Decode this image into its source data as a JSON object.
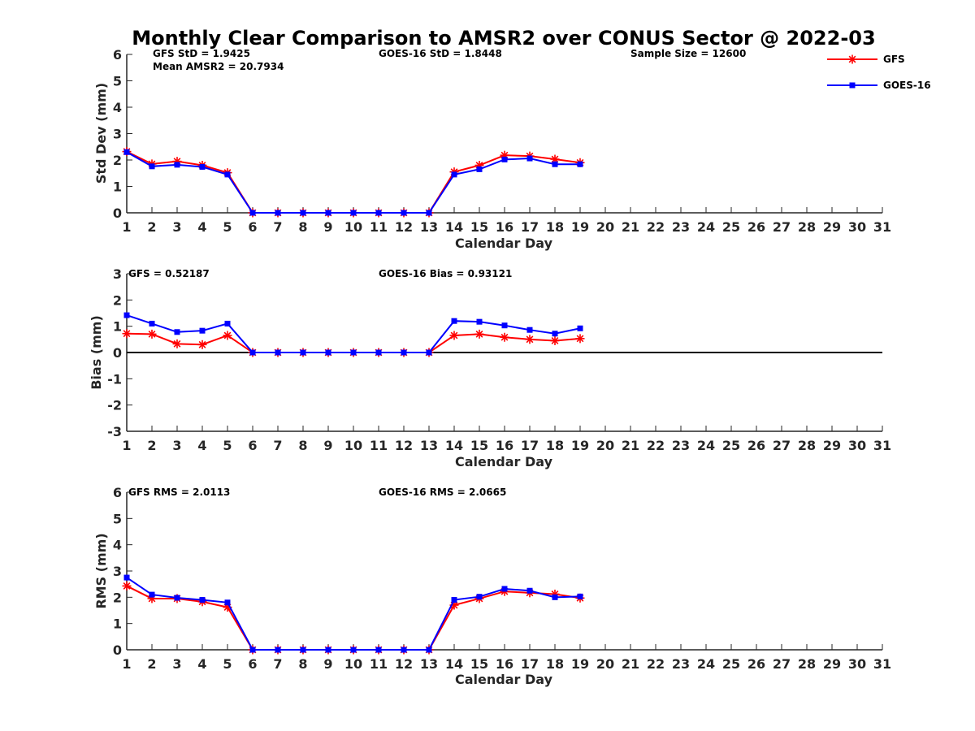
{
  "figure_title": "Monthly Clear Comparison to AMSR2 over CONUS Sector @ 2022-03",
  "legend": [
    {
      "name": "GFS",
      "color": "#ff0000",
      "marker": "asterisk"
    },
    {
      "name": "GOES-16",
      "color": "#0000ff",
      "marker": "square"
    }
  ],
  "chart_data": [
    {
      "type": "line",
      "xlabel": "Calendar Day",
      "ylabel": "Std Dev (mm)",
      "xlim": [
        1,
        31
      ],
      "ylim": [
        0,
        6
      ],
      "yticks": [
        0,
        1,
        2,
        3,
        4,
        5,
        6
      ],
      "zero_line": false,
      "annotations": [
        "GFS StD = 1.9425",
        "Mean AMSR2 = 20.7934",
        "GOES-16 StD = 1.8448",
        "Sample Size = 12600"
      ],
      "x": [
        1,
        2,
        3,
        4,
        5,
        6,
        7,
        8,
        9,
        10,
        11,
        12,
        13,
        14,
        15,
        16,
        17,
        18,
        19
      ],
      "series": [
        {
          "name": "GFS",
          "color": "#ff0000",
          "marker": "asterisk",
          "values": [
            2.32,
            1.85,
            1.95,
            1.8,
            1.52,
            0,
            0,
            0,
            0,
            0,
            0,
            0,
            0,
            1.55,
            1.8,
            2.18,
            2.15,
            2.03,
            1.9
          ]
        },
        {
          "name": "GOES-16",
          "color": "#0000ff",
          "marker": "square",
          "values": [
            2.3,
            1.76,
            1.82,
            1.74,
            1.45,
            0,
            0,
            0,
            0,
            0,
            0,
            0,
            0,
            1.45,
            1.65,
            2.02,
            2.06,
            1.84,
            1.84
          ]
        }
      ]
    },
    {
      "type": "line",
      "xlabel": "Calendar Day",
      "ylabel": "Bias (mm)",
      "xlim": [
        1,
        31
      ],
      "ylim": [
        -3,
        3
      ],
      "yticks": [
        -3,
        -2,
        -1,
        0,
        1,
        2,
        3
      ],
      "zero_line": true,
      "annotations": [
        "GFS = 0.52187",
        "GOES-16 Bias = 0.93121"
      ],
      "x": [
        1,
        2,
        3,
        4,
        5,
        6,
        7,
        8,
        9,
        10,
        11,
        12,
        13,
        14,
        15,
        16,
        17,
        18,
        19
      ],
      "series": [
        {
          "name": "GFS",
          "color": "#ff0000",
          "marker": "asterisk",
          "values": [
            0.72,
            0.7,
            0.33,
            0.3,
            0.65,
            0,
            0,
            0,
            0,
            0,
            0,
            0,
            0,
            0.65,
            0.7,
            0.58,
            0.5,
            0.45,
            0.53
          ]
        },
        {
          "name": "GOES-16",
          "color": "#0000ff",
          "marker": "square",
          "values": [
            1.42,
            1.1,
            0.78,
            0.83,
            1.1,
            0,
            0,
            0,
            0,
            0,
            0,
            0,
            0,
            1.2,
            1.17,
            1.03,
            0.86,
            0.72,
            0.92
          ]
        }
      ]
    },
    {
      "type": "line",
      "xlabel": "Calendar Day",
      "ylabel": "RMS (mm)",
      "xlim": [
        1,
        31
      ],
      "ylim": [
        0,
        6
      ],
      "yticks": [
        0,
        1,
        2,
        3,
        4,
        5,
        6
      ],
      "zero_line": false,
      "annotations": [
        "GFS RMS = 2.0113",
        "GOES-16 RMS = 2.0665"
      ],
      "x": [
        1,
        2,
        3,
        4,
        5,
        6,
        7,
        8,
        9,
        10,
        11,
        12,
        13,
        14,
        15,
        16,
        17,
        18,
        19
      ],
      "series": [
        {
          "name": "GFS",
          "color": "#ff0000",
          "marker": "asterisk",
          "values": [
            2.43,
            1.95,
            1.95,
            1.83,
            1.62,
            0,
            0,
            0,
            0,
            0,
            0,
            0,
            0,
            1.7,
            1.95,
            2.22,
            2.17,
            2.12,
            1.97
          ]
        },
        {
          "name": "GOES-16",
          "color": "#0000ff",
          "marker": "square",
          "values": [
            2.75,
            2.1,
            1.98,
            1.9,
            1.8,
            0,
            0,
            0,
            0,
            0,
            0,
            0,
            0,
            1.9,
            2.02,
            2.32,
            2.25,
            2.0,
            2.03
          ]
        }
      ]
    }
  ]
}
